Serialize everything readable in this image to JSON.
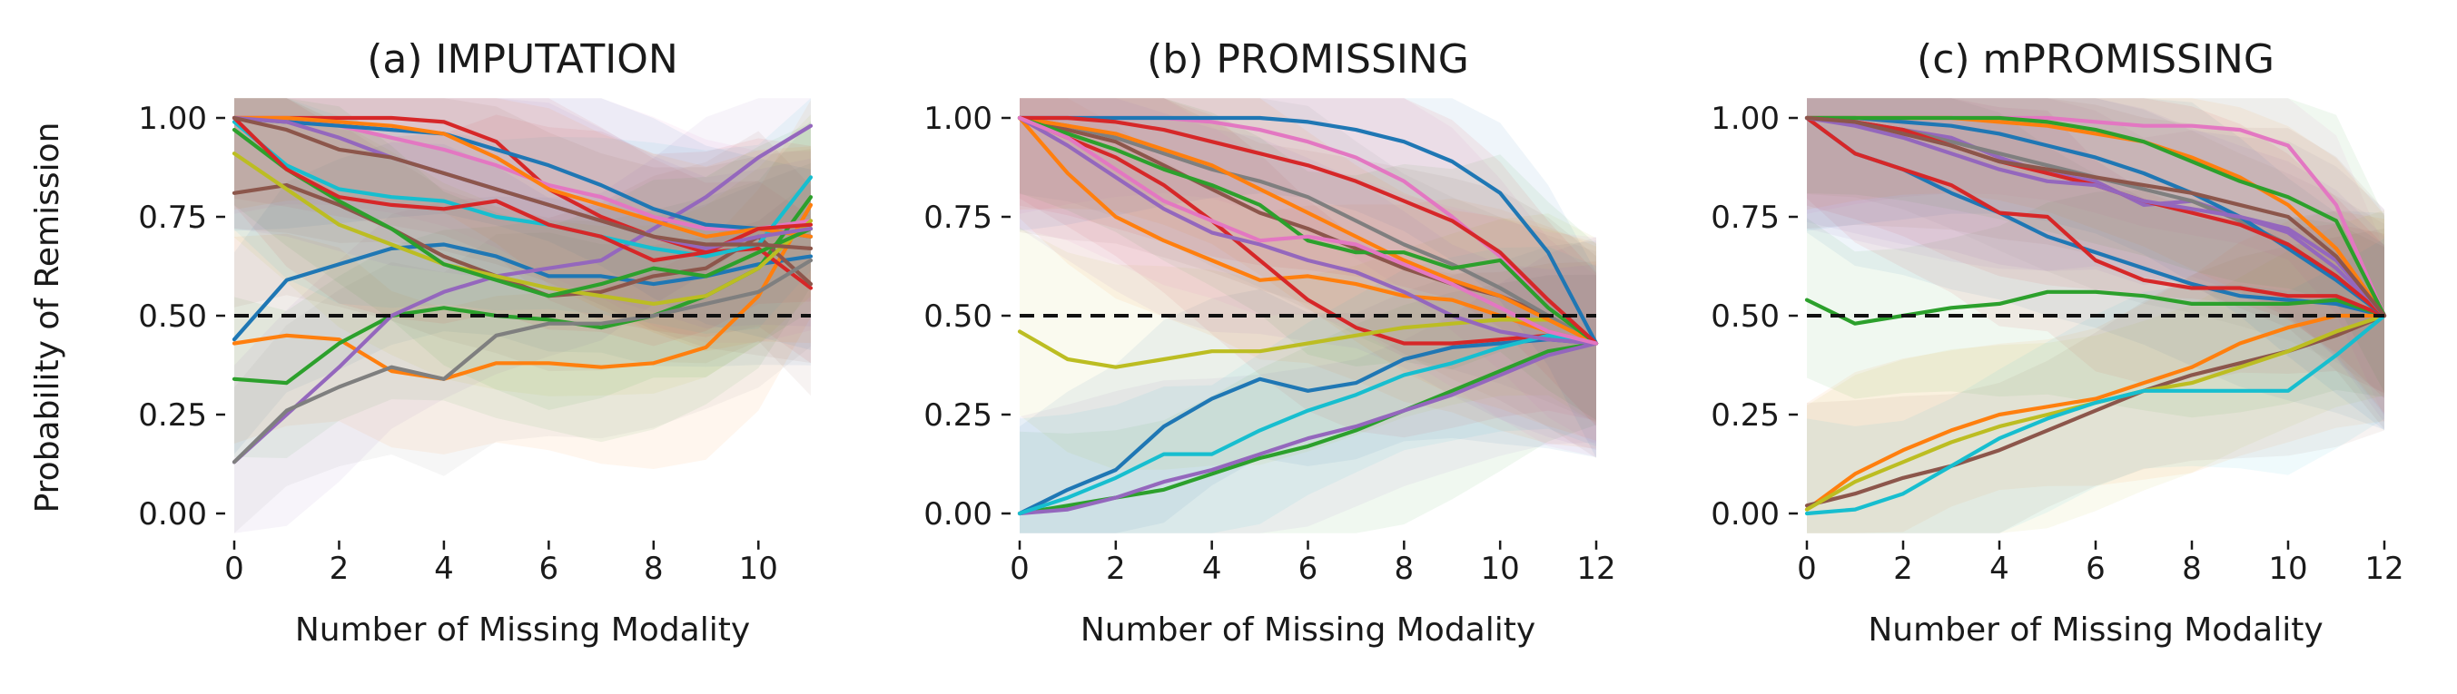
{
  "figure": {
    "ylabel": "Probability of Remission",
    "reference_line": 0.5
  },
  "colors": [
    "#1f77b4",
    "#ff7f0e",
    "#2ca02c",
    "#d62728",
    "#9467bd",
    "#8c564b",
    "#e377c2",
    "#7f7f7f",
    "#bcbd22",
    "#17becf"
  ],
  "chart_data": [
    {
      "type": "line",
      "title": "(a) IMPUTATION",
      "xlabel": "Number of Missing Modality",
      "ylabel": "Probability of Remission",
      "xlim": [
        0,
        11
      ],
      "ylim": [
        -0.05,
        1.05
      ],
      "xticks": [
        0,
        2,
        4,
        6,
        8,
        10
      ],
      "xtick_labels": [
        "0",
        "2",
        "4",
        "6",
        "8",
        "10"
      ],
      "yticks": [
        0,
        0.25,
        0.5,
        0.75,
        1
      ],
      "ytick_labels": [
        "0.00",
        "0.25",
        "0.50",
        "0.75",
        "1.00"
      ],
      "grid": false,
      "x": [
        0,
        1,
        2,
        3,
        4,
        5,
        6,
        7,
        8,
        9,
        10,
        11
      ],
      "series": [
        {
          "color": "#1f77b4",
          "values": [
            0.44,
            0.59,
            0.63,
            0.67,
            0.68,
            0.65,
            0.6,
            0.6,
            0.58,
            0.6,
            0.63,
            0.65
          ]
        },
        {
          "color": "#ff7f0e",
          "values": [
            0.43,
            0.45,
            0.44,
            0.36,
            0.34,
            0.38,
            0.38,
            0.37,
            0.38,
            0.42,
            0.55,
            0.78
          ]
        },
        {
          "color": "#2ca02c",
          "values": [
            0.34,
            0.33,
            0.43,
            0.5,
            0.52,
            0.5,
            0.49,
            0.47,
            0.5,
            0.55,
            0.62,
            0.8
          ]
        },
        {
          "color": "#d62728",
          "values": [
            1.0,
            1.0,
            1.0,
            1.0,
            0.99,
            0.94,
            0.82,
            0.75,
            0.7,
            0.66,
            0.67,
            0.57
          ]
        },
        {
          "color": "#9467bd",
          "values": [
            0.13,
            0.25,
            0.37,
            0.5,
            0.56,
            0.6,
            0.62,
            0.64,
            0.72,
            0.8,
            0.9,
            0.98
          ]
        },
        {
          "color": "#8c564b",
          "values": [
            0.81,
            0.83,
            0.78,
            0.72,
            0.65,
            0.6,
            0.55,
            0.56,
            0.6,
            0.62,
            0.7,
            0.58
          ]
        },
        {
          "color": "#e377c2",
          "values": [
            1.0,
            1.0,
            0.98,
            0.95,
            0.92,
            0.88,
            0.83,
            0.8,
            0.75,
            0.72,
            0.72,
            0.74
          ]
        },
        {
          "color": "#7f7f7f",
          "values": [
            0.13,
            0.26,
            0.32,
            0.37,
            0.34,
            0.45,
            0.48,
            0.48,
            0.5,
            0.53,
            0.56,
            0.64
          ]
        },
        {
          "color": "#bcbd22",
          "values": [
            0.91,
            0.82,
            0.73,
            0.68,
            0.63,
            0.6,
            0.57,
            0.55,
            0.53,
            0.55,
            0.62,
            0.74
          ]
        },
        {
          "color": "#17becf",
          "values": [
            0.99,
            0.88,
            0.82,
            0.8,
            0.79,
            0.75,
            0.73,
            0.7,
            0.67,
            0.65,
            0.68,
            0.85
          ]
        },
        {
          "color": "#1f77b4",
          "values": [
            1.0,
            0.99,
            0.98,
            0.97,
            0.96,
            0.92,
            0.88,
            0.83,
            0.77,
            0.73,
            0.72,
            0.7
          ]
        },
        {
          "color": "#ff7f0e",
          "values": [
            1.0,
            1.0,
            0.99,
            0.98,
            0.96,
            0.9,
            0.82,
            0.78,
            0.74,
            0.7,
            0.72,
            0.7
          ]
        },
        {
          "color": "#2ca02c",
          "values": [
            0.97,
            0.87,
            0.79,
            0.72,
            0.63,
            0.59,
            0.55,
            0.58,
            0.62,
            0.6,
            0.66,
            0.72
          ]
        },
        {
          "color": "#d62728",
          "values": [
            1.0,
            0.87,
            0.8,
            0.78,
            0.77,
            0.79,
            0.73,
            0.7,
            0.64,
            0.66,
            0.72,
            0.73
          ]
        },
        {
          "color": "#9467bd",
          "values": [
            1.0,
            0.99,
            0.95,
            0.9,
            0.86,
            0.82,
            0.78,
            0.74,
            0.7,
            0.67,
            0.7,
            0.72
          ]
        },
        {
          "color": "#8c564b",
          "values": [
            1.0,
            0.97,
            0.92,
            0.9,
            0.86,
            0.82,
            0.78,
            0.74,
            0.7,
            0.68,
            0.68,
            0.67
          ]
        }
      ]
    },
    {
      "type": "line",
      "title": "(b) PROMISSING",
      "xlabel": "Number of Missing Modality",
      "ylabel": "",
      "xlim": [
        0,
        12
      ],
      "ylim": [
        -0.05,
        1.05
      ],
      "xticks": [
        0,
        2,
        4,
        6,
        8,
        10,
        12
      ],
      "xtick_labels": [
        "0",
        "2",
        "4",
        "6",
        "8",
        "10",
        "12"
      ],
      "yticks": [
        0,
        0.25,
        0.5,
        0.75,
        1
      ],
      "ytick_labels": [
        "0.00",
        "0.25",
        "0.50",
        "0.75",
        "1.00"
      ],
      "grid": false,
      "x": [
        0,
        1,
        2,
        3,
        4,
        5,
        6,
        7,
        8,
        9,
        10,
        11,
        12
      ],
      "series": [
        {
          "color": "#1f77b4",
          "values": [
            0.0,
            0.06,
            0.11,
            0.22,
            0.29,
            0.34,
            0.31,
            0.33,
            0.39,
            0.42,
            0.43,
            0.44,
            0.43
          ]
        },
        {
          "color": "#ff7f0e",
          "values": [
            1.0,
            0.86,
            0.75,
            0.69,
            0.64,
            0.59,
            0.6,
            0.58,
            0.55,
            0.54,
            0.5,
            0.46,
            0.43
          ]
        },
        {
          "color": "#2ca02c",
          "values": [
            0.0,
            0.02,
            0.04,
            0.06,
            0.1,
            0.14,
            0.17,
            0.21,
            0.26,
            0.31,
            0.36,
            0.41,
            0.43
          ]
        },
        {
          "color": "#d62728",
          "values": [
            1.0,
            0.95,
            0.9,
            0.83,
            0.74,
            0.64,
            0.54,
            0.47,
            0.43,
            0.43,
            0.44,
            0.45,
            0.43
          ]
        },
        {
          "color": "#9467bd",
          "values": [
            0.0,
            0.01,
            0.04,
            0.08,
            0.11,
            0.15,
            0.19,
            0.22,
            0.26,
            0.3,
            0.35,
            0.4,
            0.43
          ]
        },
        {
          "color": "#8c564b",
          "values": [
            1.0,
            0.97,
            0.94,
            0.88,
            0.82,
            0.76,
            0.72,
            0.67,
            0.62,
            0.58,
            0.55,
            0.5,
            0.43
          ]
        },
        {
          "color": "#e377c2",
          "values": [
            1.0,
            1.0,
            1.0,
            1.0,
            0.99,
            0.97,
            0.94,
            0.9,
            0.84,
            0.75,
            0.65,
            0.52,
            0.43
          ]
        },
        {
          "color": "#7f7f7f",
          "values": [
            1.0,
            0.98,
            0.95,
            0.91,
            0.87,
            0.84,
            0.8,
            0.74,
            0.68,
            0.63,
            0.57,
            0.5,
            0.43
          ]
        },
        {
          "color": "#bcbd22",
          "values": [
            0.46,
            0.39,
            0.37,
            0.39,
            0.41,
            0.41,
            0.43,
            0.45,
            0.47,
            0.48,
            0.49,
            0.49,
            0.43
          ]
        },
        {
          "color": "#17becf",
          "values": [
            0.0,
            0.04,
            0.09,
            0.15,
            0.15,
            0.21,
            0.26,
            0.3,
            0.35,
            0.38,
            0.42,
            0.45,
            0.43
          ]
        },
        {
          "color": "#1f77b4",
          "values": [
            1.0,
            1.0,
            1.0,
            1.0,
            1.0,
            1.0,
            0.99,
            0.97,
            0.94,
            0.89,
            0.81,
            0.66,
            0.43
          ]
        },
        {
          "color": "#ff7f0e",
          "values": [
            1.0,
            0.98,
            0.96,
            0.92,
            0.88,
            0.82,
            0.76,
            0.7,
            0.64,
            0.59,
            0.55,
            0.49,
            0.43
          ]
        },
        {
          "color": "#2ca02c",
          "values": [
            1.0,
            0.96,
            0.92,
            0.87,
            0.83,
            0.78,
            0.69,
            0.66,
            0.66,
            0.62,
            0.64,
            0.52,
            0.43
          ]
        },
        {
          "color": "#d62728",
          "values": [
            1.0,
            1.0,
            0.99,
            0.97,
            0.94,
            0.91,
            0.88,
            0.84,
            0.79,
            0.74,
            0.66,
            0.54,
            0.43
          ]
        },
        {
          "color": "#9467bd",
          "values": [
            1.0,
            0.93,
            0.85,
            0.77,
            0.71,
            0.68,
            0.64,
            0.61,
            0.56,
            0.5,
            0.46,
            0.44,
            0.43
          ]
        },
        {
          "color": "#e377c2",
          "values": [
            1.0,
            0.95,
            0.87,
            0.79,
            0.74,
            0.69,
            0.7,
            0.68,
            0.63,
            0.58,
            0.52,
            0.46,
            0.43
          ]
        }
      ]
    },
    {
      "type": "line",
      "title": "(c) mPROMISSING",
      "xlabel": "Number of Missing Modality",
      "ylabel": "",
      "xlim": [
        0,
        12
      ],
      "ylim": [
        -0.05,
        1.05
      ],
      "xticks": [
        0,
        2,
        4,
        6,
        8,
        10,
        12
      ],
      "xtick_labels": [
        "0",
        "2",
        "4",
        "6",
        "8",
        "10",
        "12"
      ],
      "yticks": [
        0,
        0.25,
        0.5,
        0.75,
        1
      ],
      "ytick_labels": [
        "0.00",
        "0.25",
        "0.50",
        "0.75",
        "1.00"
      ],
      "grid": false,
      "x": [
        0,
        1,
        2,
        3,
        4,
        5,
        6,
        7,
        8,
        9,
        10,
        11,
        12
      ],
      "series": [
        {
          "color": "#1f77b4",
          "values": [
            1.0,
            0.91,
            0.87,
            0.81,
            0.76,
            0.7,
            0.66,
            0.62,
            0.58,
            0.55,
            0.54,
            0.53,
            0.5
          ]
        },
        {
          "color": "#ff7f0e",
          "values": [
            0.01,
            0.1,
            0.16,
            0.21,
            0.25,
            0.27,
            0.29,
            0.33,
            0.37,
            0.43,
            0.47,
            0.5,
            0.5
          ]
        },
        {
          "color": "#2ca02c",
          "values": [
            0.54,
            0.48,
            0.5,
            0.52,
            0.53,
            0.56,
            0.56,
            0.55,
            0.53,
            0.53,
            0.53,
            0.54,
            0.5
          ]
        },
        {
          "color": "#d62728",
          "values": [
            1.0,
            0.91,
            0.87,
            0.83,
            0.76,
            0.75,
            0.64,
            0.59,
            0.57,
            0.57,
            0.55,
            0.55,
            0.5
          ]
        },
        {
          "color": "#9467bd",
          "values": [
            1.0,
            0.99,
            0.97,
            0.95,
            0.9,
            0.86,
            0.84,
            0.78,
            0.79,
            0.75,
            0.71,
            0.62,
            0.5
          ]
        },
        {
          "color": "#8c564b",
          "values": [
            0.02,
            0.05,
            0.09,
            0.12,
            0.16,
            0.21,
            0.26,
            0.31,
            0.35,
            0.38,
            0.41,
            0.45,
            0.5
          ]
        },
        {
          "color": "#e377c2",
          "values": [
            1.0,
            1.0,
            1.0,
            1.0,
            1.0,
            1.0,
            0.99,
            0.98,
            0.98,
            0.97,
            0.93,
            0.78,
            0.5
          ]
        },
        {
          "color": "#7f7f7f",
          "values": [
            1.0,
            0.99,
            0.97,
            0.94,
            0.91,
            0.88,
            0.85,
            0.82,
            0.79,
            0.74,
            0.68,
            0.6,
            0.5
          ]
        },
        {
          "color": "#bcbd22",
          "values": [
            0.01,
            0.08,
            0.13,
            0.18,
            0.22,
            0.25,
            0.28,
            0.31,
            0.33,
            0.37,
            0.41,
            0.46,
            0.5
          ]
        },
        {
          "color": "#17becf",
          "values": [
            0.0,
            0.01,
            0.05,
            0.12,
            0.19,
            0.24,
            0.28,
            0.31,
            0.31,
            0.31,
            0.31,
            0.4,
            0.5
          ]
        },
        {
          "color": "#1f77b4",
          "values": [
            1.0,
            1.0,
            0.99,
            0.98,
            0.96,
            0.93,
            0.9,
            0.86,
            0.81,
            0.75,
            0.67,
            0.59,
            0.5
          ]
        },
        {
          "color": "#ff7f0e",
          "values": [
            1.0,
            1.0,
            1.0,
            1.0,
            0.99,
            0.98,
            0.96,
            0.94,
            0.9,
            0.85,
            0.78,
            0.67,
            0.5
          ]
        },
        {
          "color": "#2ca02c",
          "values": [
            1.0,
            1.0,
            1.0,
            1.0,
            1.0,
            0.99,
            0.97,
            0.94,
            0.89,
            0.84,
            0.8,
            0.74,
            0.5
          ]
        },
        {
          "color": "#d62728",
          "values": [
            1.0,
            0.99,
            0.97,
            0.93,
            0.89,
            0.86,
            0.83,
            0.79,
            0.76,
            0.73,
            0.68,
            0.6,
            0.5
          ]
        },
        {
          "color": "#9467bd",
          "values": [
            1.0,
            0.98,
            0.95,
            0.91,
            0.87,
            0.84,
            0.83,
            0.79,
            0.77,
            0.75,
            0.72,
            0.64,
            0.5
          ]
        },
        {
          "color": "#8c564b",
          "values": [
            1.0,
            0.99,
            0.96,
            0.93,
            0.89,
            0.87,
            0.85,
            0.83,
            0.81,
            0.78,
            0.75,
            0.65,
            0.5
          ]
        }
      ]
    }
  ]
}
